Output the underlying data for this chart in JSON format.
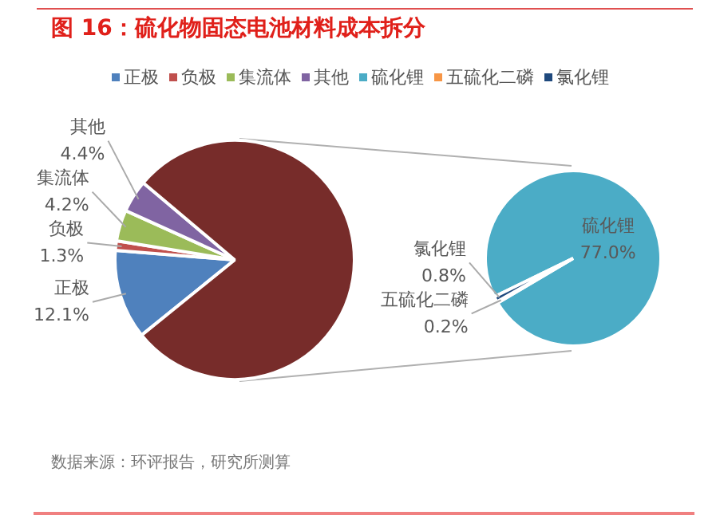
{
  "chart_data": [
    {
      "type": "pie",
      "title": "图 16：硫化物固态电池材料成本拆分",
      "categories": [
        "正极",
        "负极",
        "集流体",
        "其他",
        null
      ],
      "values": [
        12.1,
        1.3,
        4.2,
        4.4,
        78.0
      ],
      "value_labels": [
        "12.1%",
        "1.3%",
        "4.2%",
        "4.4%",
        null
      ],
      "colors": [
        "#4f81bd",
        "#c0504d",
        "#9bbb59",
        "#8064a2",
        "#772c2a"
      ],
      "legend": "top",
      "annotations": [
        "数据来源：环评报告，研究所测算"
      ]
    },
    {
      "type": "pie",
      "categories": [
        "硫化锂",
        "五硫化二磷",
        "氯化锂"
      ],
      "values": [
        77.0,
        0.2,
        0.8
      ],
      "value_labels": [
        "77.0%",
        "0.2%",
        "0.8%"
      ],
      "colors": [
        "#4bacc6",
        "#f79646",
        "#1f497d"
      ],
      "legend": "top"
    }
  ]
}
